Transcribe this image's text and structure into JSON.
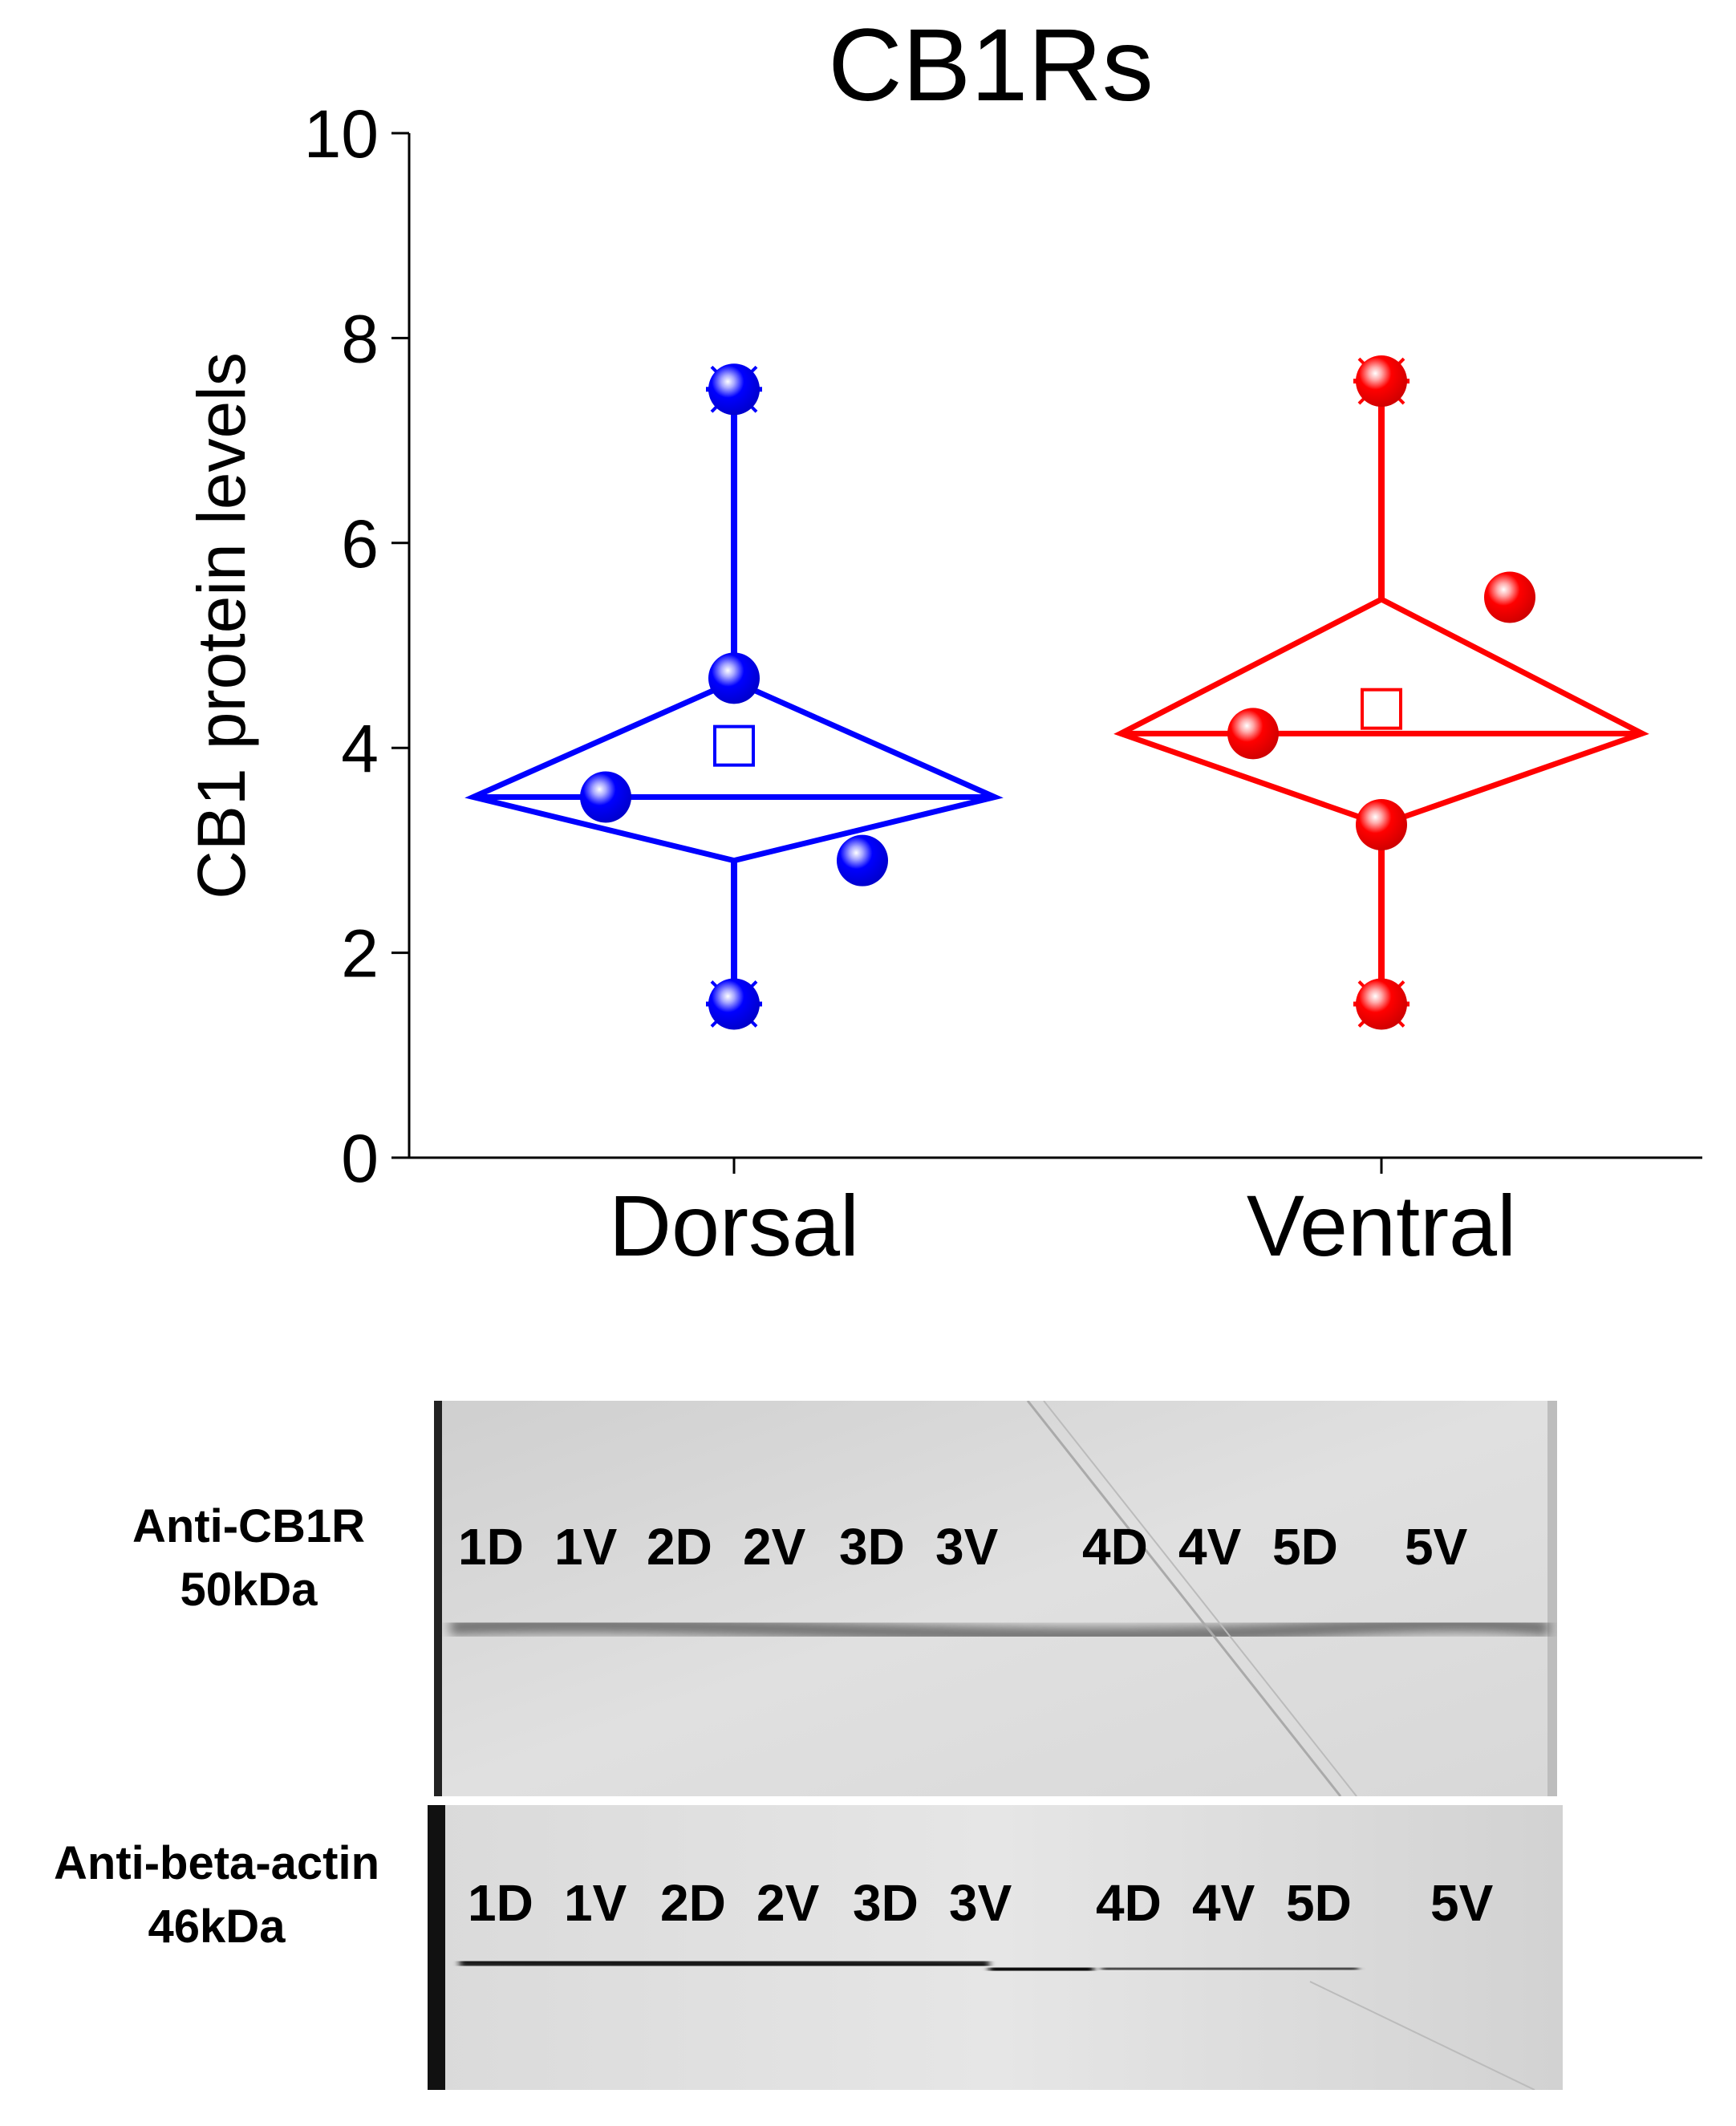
{
  "chart_data": {
    "type": "box",
    "title": "CB1Rs",
    "xlabel": "",
    "ylabel": "CB1 protein levels",
    "ylim": [
      0,
      10
    ],
    "yticks": [
      "0",
      "2",
      "4",
      "6",
      "8",
      "10"
    ],
    "categories": [
      "Dorsal",
      "Ventral"
    ],
    "series": [
      {
        "name": "Dorsal",
        "color": "#0000ff",
        "points": [
          1.5,
          2.9,
          3.52,
          4.68,
          7.5
        ],
        "box_top": 4.65,
        "box_mid": 3.52,
        "box_bottom": 2.9,
        "mean": 4.02,
        "whisker_max": 7.5,
        "whisker_min": 1.5
      },
      {
        "name": "Ventral",
        "color": "#ff0000",
        "points": [
          1.5,
          3.25,
          4.14,
          5.47,
          7.58
        ],
        "box_top": 5.45,
        "box_mid": 4.14,
        "box_bottom": 3.25,
        "mean": 4.38,
        "whisker_max": 7.58,
        "whisker_min": 1.5
      }
    ]
  },
  "blots": [
    {
      "antibody": "Anti-CB1R",
      "weight": "50kDa",
      "lanes": [
        "1D",
        "1V",
        "2D",
        "2V",
        "3D",
        "3V",
        "4D",
        "4V",
        "5D",
        "5V"
      ]
    },
    {
      "antibody": "Anti-beta-actin",
      "weight": "46kDa",
      "lanes": [
        "1D",
        "1V",
        "2D",
        "2V",
        "3D",
        "3V",
        "4D",
        "4V",
        "5D",
        "5V"
      ]
    }
  ]
}
